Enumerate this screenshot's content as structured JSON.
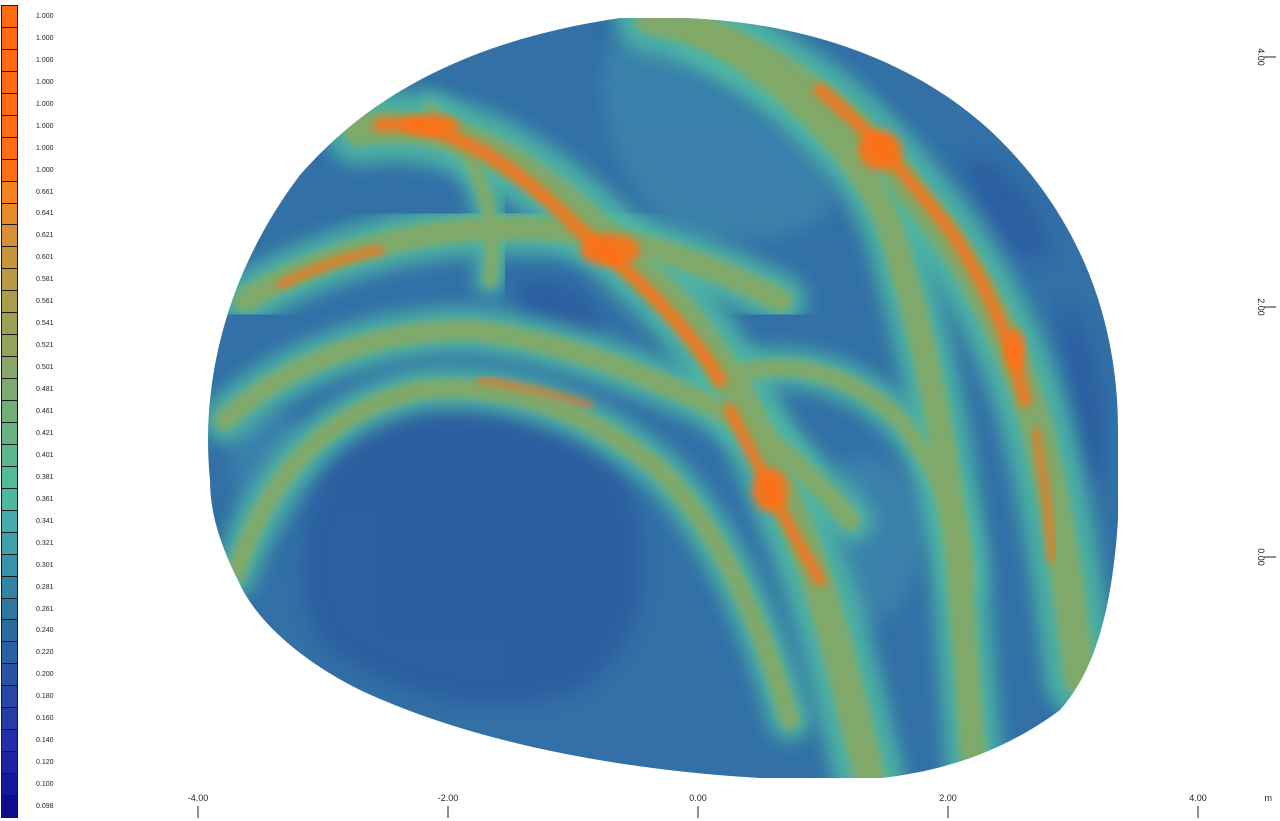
{
  "chart_data": {
    "type": "heatmap",
    "title": "",
    "xlabel": "",
    "ylabel": "",
    "x_unit": "m",
    "xlim": [
      -4.0,
      4.0
    ],
    "ylim": [
      -1.0,
      4.0
    ],
    "x_ticks": [
      {
        "value": -4.0,
        "label": "-4.00"
      },
      {
        "value": -2.0,
        "label": "-2.00"
      },
      {
        "value": 0.0,
        "label": "0.00"
      },
      {
        "value": 2.0,
        "label": "2.00"
      },
      {
        "value": 4.0,
        "label": "4.00"
      }
    ],
    "y_ticks": [
      {
        "value": 4.0,
        "label": "4.00"
      },
      {
        "value": 2.0,
        "label": "2.00"
      },
      {
        "value": 0.0,
        "label": "0.00"
      }
    ],
    "grid": false,
    "legend_placement": "left",
    "colorbar": [
      {
        "label": "1.000",
        "color": "#ff6a10"
      },
      {
        "label": "1.000",
        "color": "#ff6a10"
      },
      {
        "label": "1.000",
        "color": "#ff6a10"
      },
      {
        "label": "1.000",
        "color": "#ff6b12"
      },
      {
        "label": "1.000",
        "color": "#ff6c12"
      },
      {
        "label": "1.000",
        "color": "#ff6d14"
      },
      {
        "label": "1.000",
        "color": "#ff6e14"
      },
      {
        "label": "1.000",
        "color": "#ff7016"
      },
      {
        "label": "0.661",
        "color": "#f58222"
      },
      {
        "label": "0.641",
        "color": "#e8892a"
      },
      {
        "label": "0.621",
        "color": "#d98f32"
      },
      {
        "label": "0.601",
        "color": "#c9943a"
      },
      {
        "label": "0.581",
        "color": "#b99944"
      },
      {
        "label": "0.561",
        "color": "#aa9d4e"
      },
      {
        "label": "0.541",
        "color": "#9ea056"
      },
      {
        "label": "0.521",
        "color": "#93a35e"
      },
      {
        "label": "0.501",
        "color": "#88a666"
      },
      {
        "label": "0.481",
        "color": "#7daa6e"
      },
      {
        "label": "0.461",
        "color": "#72ae78"
      },
      {
        "label": "0.421",
        "color": "#67b282"
      },
      {
        "label": "0.401",
        "color": "#5cb68e"
      },
      {
        "label": "0.381",
        "color": "#54bb9a"
      },
      {
        "label": "0.361",
        "color": "#4cb8a4"
      },
      {
        "label": "0.341",
        "color": "#44acaa"
      },
      {
        "label": "0.321",
        "color": "#3ea0aa"
      },
      {
        "label": "0.301",
        "color": "#3892a8"
      },
      {
        "label": "0.281",
        "color": "#3384a4"
      },
      {
        "label": "0.261",
        "color": "#2f76a0"
      },
      {
        "label": "0.240",
        "color": "#2d6aa0"
      },
      {
        "label": "0.220",
        "color": "#2b5ea2"
      },
      {
        "label": "0.200",
        "color": "#2a52a4"
      },
      {
        "label": "0.180",
        "color": "#2846a6"
      },
      {
        "label": "0.160",
        "color": "#263aa8"
      },
      {
        "label": "0.140",
        "color": "#222ea6"
      },
      {
        "label": "0.120",
        "color": "#1c22a0"
      },
      {
        "label": "0.100",
        "color": "#14189a"
      },
      {
        "label": "0.098",
        "color": "#0c0c8c"
      }
    ],
    "field": {
      "base_color": "#3270a6",
      "light_blue_color": "#3c84ac",
      "dark_blue_color": "#2b5ba0",
      "halo_color": "#4fb8a4",
      "band_color": "#83a968",
      "peak_color": "#ff7014"
    }
  }
}
